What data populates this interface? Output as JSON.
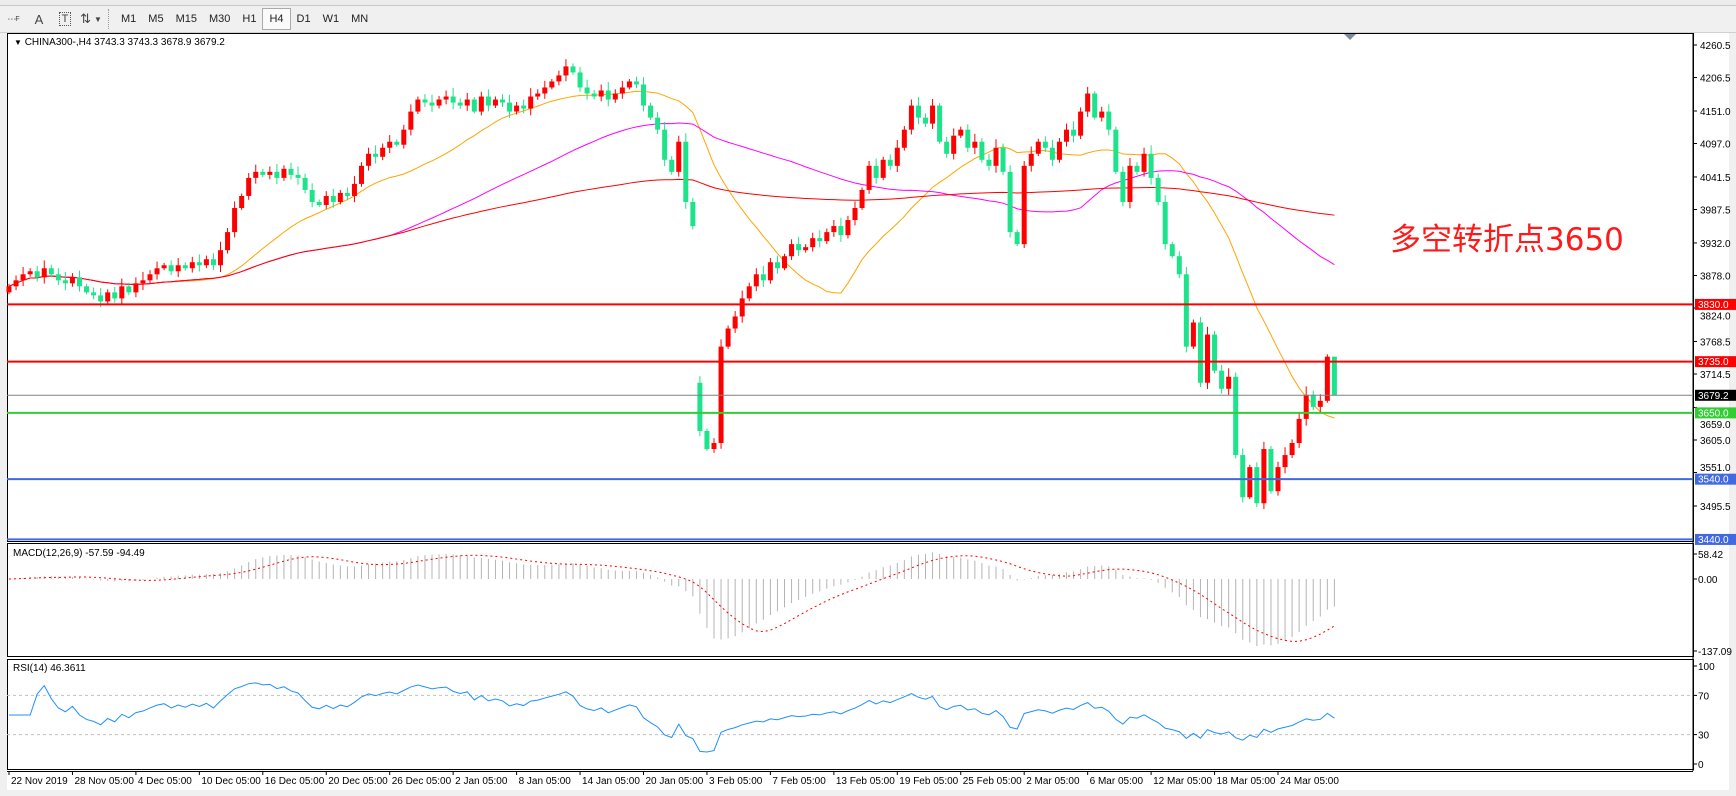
{
  "toolbar": {
    "icons": [
      "fibonacci-icon",
      "text-icon",
      "text-label-icon",
      "arrows-icon"
    ],
    "icon_glyphs": {
      "text": "A",
      "label": "T"
    },
    "timeframes": [
      "M1",
      "M5",
      "M15",
      "M30",
      "H1",
      "H4",
      "D1",
      "W1",
      "MN"
    ],
    "active_timeframe": "H4"
  },
  "chart": {
    "header": "CHINA300-,H4  3743.3 3743.3 3678.9 3679.2",
    "annotation": "多空转折点3650",
    "macd_label": "MACD(12,26,9) -57.59 -94.49",
    "rsi_label": "RSI(14) 46.3611"
  },
  "chart_data": {
    "type": "candlestick",
    "symbol": "CHINA300-",
    "timeframe": "H4",
    "up_color": "#ff0000",
    "down_color": "#1de38a",
    "closes": [
      3860,
      3870,
      3880,
      3885,
      3875,
      3890,
      3880,
      3870,
      3865,
      3875,
      3860,
      3850,
      3845,
      3835,
      3850,
      3840,
      3860,
      3850,
      3865,
      3870,
      3880,
      3890,
      3895,
      3885,
      3895,
      3890,
      3900,
      3895,
      3905,
      3895,
      3920,
      3950,
      3990,
      4010,
      4040,
      4050,
      4045,
      4050,
      4040,
      4055,
      4045,
      4040,
      4020,
      4000,
      3995,
      4010,
      4000,
      4015,
      4010,
      4030,
      4060,
      4080,
      4075,
      4090,
      4100,
      4095,
      4120,
      4150,
      4170,
      4165,
      4160,
      4170,
      4175,
      4165,
      4160,
      4170,
      4150,
      4175,
      4160,
      4170,
      4165,
      4150,
      4160,
      4155,
      4175,
      4180,
      4190,
      4200,
      4210,
      4225,
      4215,
      4190,
      4180,
      4175,
      4185,
      4170,
      4180,
      4190,
      4200,
      4195,
      4160,
      4140,
      4120,
      4070,
      4050,
      4100,
      4000,
      3960,
      3620,
      3590,
      3600,
      3760,
      3790,
      3810,
      3840,
      3860,
      3880,
      3870,
      3900,
      3890,
      3910,
      3930,
      3920,
      3925,
      3940,
      3935,
      3950,
      3960,
      3945,
      3970,
      3990,
      4020,
      4060,
      4040,
      4070,
      4060,
      4090,
      4120,
      4160,
      4140,
      4130,
      4160,
      4100,
      4080,
      4110,
      4120,
      4090,
      4100,
      4070,
      4060,
      4090,
      4050,
      3950,
      3930,
      4060,
      4080,
      4100,
      4090,
      4070,
      4100,
      4120,
      4110,
      4150,
      4180,
      4140,
      4150,
      4120,
      4050,
      4000,
      4060,
      4050,
      4080,
      4040,
      4000,
      3930,
      3910,
      3880,
      3760,
      3800,
      3700,
      3780,
      3720,
      3690,
      3710,
      3580,
      3510,
      3560,
      3500,
      3590,
      3520,
      3560,
      3580,
      3600,
      3640,
      3680,
      3660,
      3670,
      3743.3,
      3679.2
    ],
    "first_open": 3850,
    "gap_opens": {
      "98": 3700
    },
    "last_bar": {
      "open": 3743.3,
      "high": 3743.3,
      "low": 3678.9,
      "close": 3679.2
    },
    "price_ticks": [
      "4260.5",
      "4206.5",
      "4151.0",
      "4097.0",
      "4041.5",
      "3987.5",
      "3932.0",
      "3878.0",
      "3824.0",
      "3768.5",
      "3714.5",
      "3659.0",
      "3605.0",
      "3551.0",
      "3495.5"
    ],
    "levels": [
      {
        "price": 3830.0,
        "label": "3830.0",
        "color": "#ff0000"
      },
      {
        "price": 3735.0,
        "label": "3735.0",
        "color": "#ff0000"
      },
      {
        "price": 3650.0,
        "label": "3650.0",
        "color": "#32cd32"
      },
      {
        "price": 3540.0,
        "label": "3540.0",
        "color": "#4169e1"
      },
      {
        "price": 3440.0,
        "label": "3440.0",
        "color": "#4169e1"
      }
    ],
    "current_price": {
      "price": 3679.2,
      "label": "3679.2",
      "color": "#808080"
    },
    "moving_averages": [
      {
        "color": "#ffa500"
      },
      {
        "color": "#ff00ff"
      },
      {
        "color": "#ff0000"
      }
    ],
    "time_labels": [
      "22 Nov 2019",
      "28 Nov 05:00",
      "4 Dec 05:00",
      "10 Dec 05:00",
      "16 Dec 05:00",
      "20 Dec 05:00",
      "26 Dec 05:00",
      "2 Jan 05:00",
      "8 Jan 05:00",
      "14 Jan 05:00",
      "20 Jan 05:00",
      "3 Feb 05:00",
      "7 Feb 05:00",
      "13 Feb 05:00",
      "19 Feb 05:00",
      "25 Feb 05:00",
      "2 Mar 05:00",
      "6 Mar 05:00",
      "12 Mar 05:00",
      "18 Mar 05:00",
      "24 Mar 05:00"
    ],
    "macd": {
      "params": [
        12,
        26,
        9
      ],
      "ticks": [
        "58.42",
        "0.00",
        "-137.09"
      ],
      "range": [
        -137.09,
        58.42
      ],
      "histogram_color": "#b4b4b4",
      "signal_color": "#ff0000"
    },
    "rsi": {
      "period": 14,
      "ticks": [
        "100",
        "70",
        "30",
        "0"
      ],
      "levels": [
        70,
        30
      ],
      "color": "#1e90ff"
    }
  }
}
